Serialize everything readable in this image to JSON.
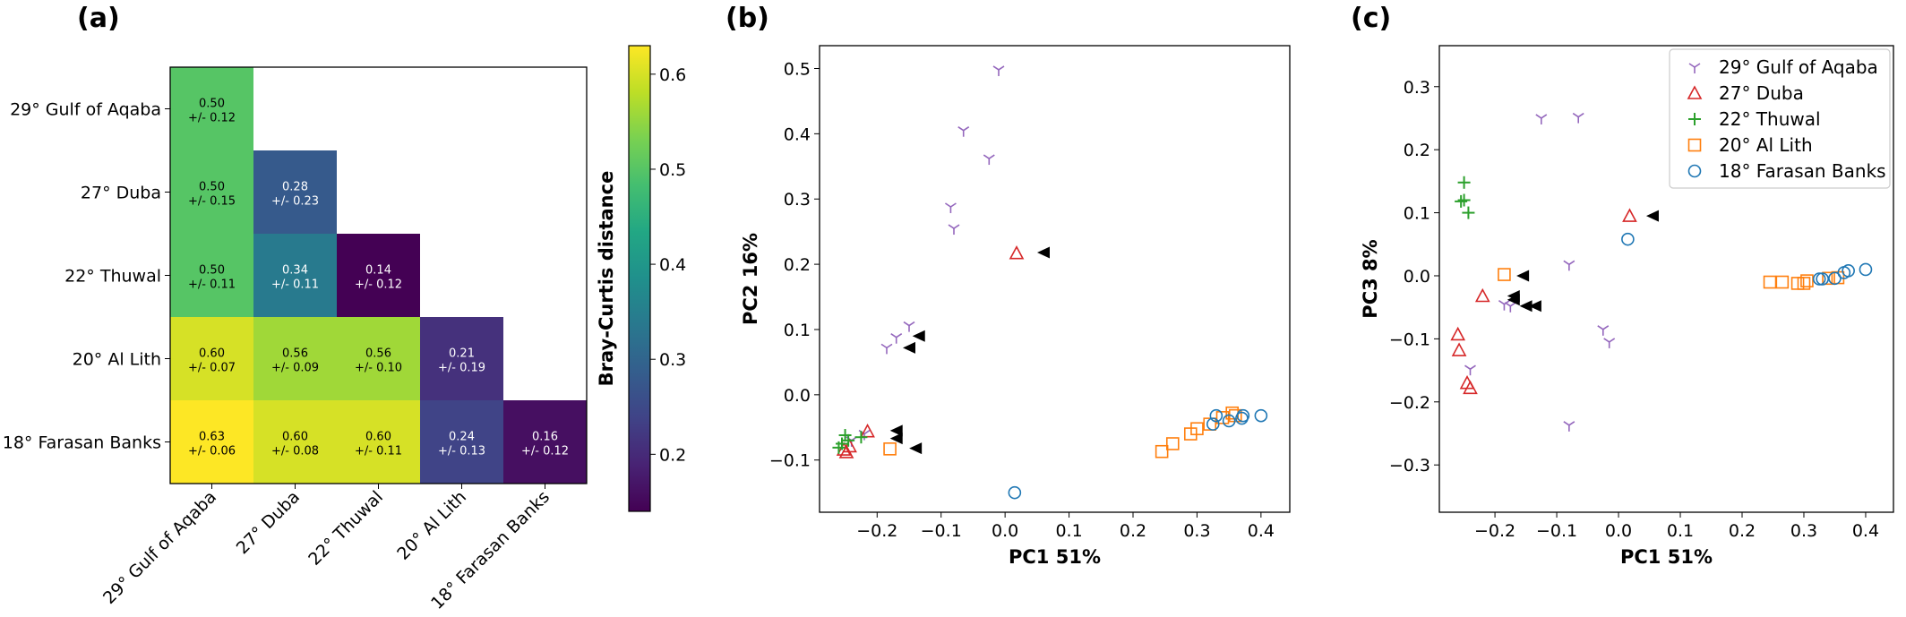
{
  "panel_labels": [
    "(a)",
    "(b)",
    "(c)"
  ],
  "colors": {
    "aqaba": "#9467bd",
    "duba": "#d62728",
    "thuwal": "#2ca02c",
    "allith": "#ff7f0e",
    "farasan": "#1f77b4",
    "arrow": "#000000"
  },
  "chart_data": [
    {
      "type": "heatmap",
      "panel": "(a)",
      "rows": [
        "29° Gulf of Aqaba",
        "27° Duba",
        "22° Thuwal",
        "20° Al Lith",
        "18° Farasan Banks"
      ],
      "cols": [
        "29° Gulf of Aqaba",
        "27° Duba",
        "22° Thuwal",
        "20° Al Lith",
        "18° Farasan Banks"
      ],
      "cells": [
        {
          "row": 0,
          "col": 0,
          "mean": "0.50",
          "sd": "+/- 0.12",
          "value": 0.5
        },
        {
          "row": 1,
          "col": 0,
          "mean": "0.50",
          "sd": "+/- 0.15",
          "value": 0.5
        },
        {
          "row": 1,
          "col": 1,
          "mean": "0.28",
          "sd": "+/- 0.23",
          "value": 0.28
        },
        {
          "row": 2,
          "col": 0,
          "mean": "0.50",
          "sd": "+/- 0.11",
          "value": 0.5
        },
        {
          "row": 2,
          "col": 1,
          "mean": "0.34",
          "sd": "+/- 0.11",
          "value": 0.34
        },
        {
          "row": 2,
          "col": 2,
          "mean": "0.14",
          "sd": "+/- 0.12",
          "value": 0.14
        },
        {
          "row": 3,
          "col": 0,
          "mean": "0.60",
          "sd": "+/- 0.07",
          "value": 0.6
        },
        {
          "row": 3,
          "col": 1,
          "mean": "0.56",
          "sd": "+/- 0.09",
          "value": 0.56
        },
        {
          "row": 3,
          "col": 2,
          "mean": "0.56",
          "sd": "+/- 0.10",
          "value": 0.56
        },
        {
          "row": 3,
          "col": 3,
          "mean": "0.21",
          "sd": "+/- 0.19",
          "value": 0.21
        },
        {
          "row": 4,
          "col": 0,
          "mean": "0.63",
          "sd": "+/- 0.06",
          "value": 0.63
        },
        {
          "row": 4,
          "col": 1,
          "mean": "0.60",
          "sd": "+/- 0.08",
          "value": 0.6
        },
        {
          "row": 4,
          "col": 2,
          "mean": "0.60",
          "sd": "+/- 0.11",
          "value": 0.6
        },
        {
          "row": 4,
          "col": 3,
          "mean": "0.24",
          "sd": "+/- 0.13",
          "value": 0.24
        },
        {
          "row": 4,
          "col": 4,
          "mean": "0.16",
          "sd": "+/- 0.12",
          "value": 0.16
        }
      ],
      "colorbar": {
        "label": "Bray-Curtis distance",
        "range": [
          0.14,
          0.63
        ],
        "ticks": [
          "0.2",
          "0.3",
          "0.4",
          "0.5",
          "0.6"
        ],
        "tick_values": [
          0.2,
          0.3,
          0.4,
          0.5,
          0.6
        ],
        "colormap": "viridis"
      }
    },
    {
      "type": "scatter",
      "panel": "(b)",
      "xlabel": "PC1 51%",
      "ylabel": "PC2 16%",
      "xlim": [
        -0.29,
        0.445
      ],
      "ylim": [
        -0.18,
        0.535
      ],
      "xticks": [
        "−0.2",
        "−0.1",
        "0.0",
        "0.1",
        "0.2",
        "0.3",
        "0.4"
      ],
      "xtick_values": [
        -0.2,
        -0.1,
        0.0,
        0.1,
        0.2,
        0.3,
        0.4
      ],
      "yticks": [
        "−0.1",
        "0.0",
        "0.1",
        "0.2",
        "0.3",
        "0.4",
        "0.5"
      ],
      "ytick_values": [
        -0.1,
        0.0,
        0.1,
        0.2,
        0.3,
        0.4,
        0.5
      ],
      "series": [
        {
          "name": "29° Gulf of Aqaba",
          "marker": "tri",
          "points": [
            [
              -0.01,
              0.498
            ],
            [
              -0.065,
              0.405
            ],
            [
              -0.025,
              0.362
            ],
            [
              -0.085,
              0.288
            ],
            [
              -0.08,
              0.255
            ],
            [
              -0.15,
              0.106
            ],
            [
              -0.17,
              0.088
            ],
            [
              -0.185,
              0.072
            ],
            [
              -0.22,
              -0.06
            ],
            [
              -0.24,
              -0.07
            ]
          ]
        },
        {
          "name": "27° Duba",
          "marker": "triangle",
          "points": [
            [
              0.018,
              0.217
            ],
            [
              -0.215,
              -0.056
            ],
            [
              -0.243,
              -0.079
            ],
            [
              -0.248,
              -0.088
            ],
            [
              -0.252,
              -0.084
            ]
          ]
        },
        {
          "name": "22° Thuwal",
          "marker": "plus",
          "points": [
            [
              -0.25,
              -0.062
            ],
            [
              -0.255,
              -0.075
            ],
            [
              -0.26,
              -0.081
            ],
            [
              -0.245,
              -0.07
            ],
            [
              -0.225,
              -0.065
            ]
          ]
        },
        {
          "name": "20° Al Lith",
          "marker": "square",
          "points": [
            [
              -0.18,
              -0.083
            ],
            [
              0.245,
              -0.087
            ],
            [
              0.262,
              -0.075
            ],
            [
              0.29,
              -0.06
            ],
            [
              0.3,
              -0.052
            ],
            [
              0.32,
              -0.045
            ],
            [
              0.34,
              -0.035
            ],
            [
              0.355,
              -0.028
            ],
            [
              0.36,
              -0.032
            ]
          ]
        },
        {
          "name": "18° Farasan Banks",
          "marker": "circle",
          "points": [
            [
              0.015,
              -0.15
            ],
            [
              0.325,
              -0.045
            ],
            [
              0.33,
              -0.032
            ],
            [
              0.35,
              -0.04
            ],
            [
              0.37,
              -0.036
            ],
            [
              0.372,
              -0.032
            ],
            [
              0.4,
              -0.032
            ]
          ]
        }
      ],
      "arrows": [
        [
          0.06,
          0.218
        ],
        [
          -0.135,
          0.09
        ],
        [
          -0.15,
          0.072
        ],
        [
          -0.17,
          -0.055
        ],
        [
          -0.17,
          -0.067
        ],
        [
          -0.14,
          -0.082
        ]
      ]
    },
    {
      "type": "scatter",
      "panel": "(c)",
      "xlabel": "PC1 51%",
      "ylabel": "PC3 8%",
      "xlim": [
        -0.29,
        0.445
      ],
      "ylim": [
        -0.375,
        0.365
      ],
      "xticks": [
        "−0.2",
        "−0.1",
        "0.0",
        "0.1",
        "0.2",
        "0.3",
        "0.4"
      ],
      "xtick_values": [
        -0.2,
        -0.1,
        0.0,
        0.1,
        0.2,
        0.3,
        0.4
      ],
      "yticks": [
        "−0.3",
        "−0.2",
        "−0.1",
        "0.0",
        "0.1",
        "0.2",
        "0.3"
      ],
      "ytick_values": [
        -0.3,
        -0.2,
        -0.1,
        0.0,
        0.1,
        0.2,
        0.3
      ],
      "legend": {
        "position": "top-right"
      },
      "series": [
        {
          "name": "29° Gulf of Aqaba",
          "marker": "tri",
          "points": [
            [
              -0.125,
              0.25
            ],
            [
              -0.065,
              0.252
            ],
            [
              -0.08,
              0.018
            ],
            [
              -0.175,
              -0.048
            ],
            [
              -0.185,
              -0.045
            ],
            [
              -0.025,
              -0.085
            ],
            [
              -0.015,
              -0.105
            ],
            [
              -0.24,
              -0.148
            ],
            [
              -0.08,
              -0.237
            ]
          ]
        },
        {
          "name": "27° Duba",
          "marker": "triangle",
          "points": [
            [
              0.018,
              0.095
            ],
            [
              -0.22,
              -0.032
            ],
            [
              -0.26,
              -0.093
            ],
            [
              -0.258,
              -0.118
            ],
            [
              -0.245,
              -0.17
            ],
            [
              -0.24,
              -0.178
            ]
          ]
        },
        {
          "name": "22° Thuwal",
          "marker": "plus",
          "points": [
            [
              -0.25,
              0.148
            ],
            [
              -0.25,
              0.12
            ],
            [
              -0.255,
              0.118
            ],
            [
              -0.243,
              0.1
            ]
          ]
        },
        {
          "name": "20° Al Lith",
          "marker": "square",
          "points": [
            [
              -0.185,
              0.002
            ],
            [
              0.245,
              -0.01
            ],
            [
              0.265,
              -0.01
            ],
            [
              0.29,
              -0.012
            ],
            [
              0.3,
              -0.012
            ],
            [
              0.305,
              -0.008
            ],
            [
              0.34,
              -0.004
            ],
            [
              0.355,
              -0.003
            ]
          ]
        },
        {
          "name": "18° Farasan Banks",
          "marker": "circle",
          "points": [
            [
              0.015,
              0.058
            ],
            [
              0.325,
              -0.005
            ],
            [
              0.33,
              -0.005
            ],
            [
              0.35,
              -0.004
            ],
            [
              0.365,
              0.005
            ],
            [
              0.372,
              0.008
            ],
            [
              0.4,
              0.01
            ]
          ]
        }
      ],
      "arrows": [
        [
          0.055,
          0.095
        ],
        [
          -0.155,
          0.0
        ],
        [
          -0.17,
          -0.032
        ],
        [
          -0.17,
          -0.038
        ],
        [
          -0.15,
          -0.048
        ],
        [
          -0.135,
          -0.048
        ]
      ]
    }
  ]
}
